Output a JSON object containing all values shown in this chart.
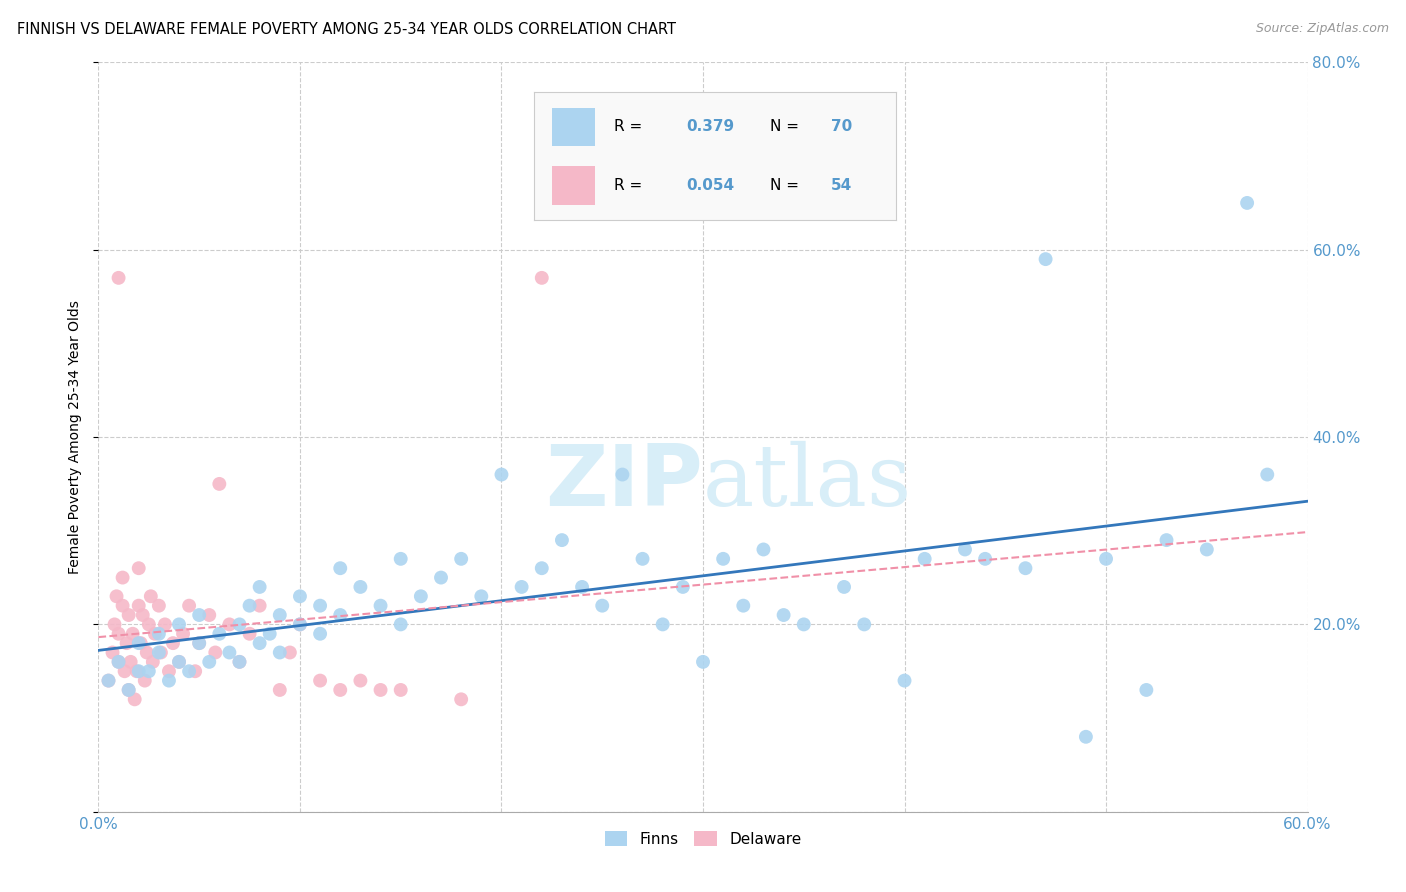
{
  "title": "FINNISH VS DELAWARE FEMALE POVERTY AMONG 25-34 YEAR OLDS CORRELATION CHART",
  "source": "Source: ZipAtlas.com",
  "ylabel": "Female Poverty Among 25-34 Year Olds",
  "xlim": [
    0.0,
    0.6
  ],
  "ylim": [
    0.0,
    0.8
  ],
  "background_color": "#ffffff",
  "grid_color": "#cccccc",
  "finns_color": "#acd4f0",
  "delaware_color": "#f5b8c8",
  "finns_line_color": "#3377bb",
  "delaware_line_color": "#f090a8",
  "watermark_color": "#d8eef8",
  "tick_color": "#5599cc",
  "finns_x": [
    0.005,
    0.01,
    0.015,
    0.02,
    0.02,
    0.025,
    0.03,
    0.03,
    0.035,
    0.04,
    0.04,
    0.045,
    0.05,
    0.05,
    0.055,
    0.06,
    0.065,
    0.07,
    0.07,
    0.075,
    0.08,
    0.08,
    0.085,
    0.09,
    0.09,
    0.1,
    0.1,
    0.11,
    0.11,
    0.12,
    0.12,
    0.13,
    0.14,
    0.15,
    0.15,
    0.16,
    0.17,
    0.18,
    0.19,
    0.2,
    0.21,
    0.22,
    0.23,
    0.24,
    0.25,
    0.26,
    0.27,
    0.28,
    0.29,
    0.3,
    0.31,
    0.32,
    0.33,
    0.34,
    0.35,
    0.37,
    0.38,
    0.4,
    0.41,
    0.43,
    0.44,
    0.46,
    0.47,
    0.49,
    0.5,
    0.52,
    0.53,
    0.55,
    0.57,
    0.58
  ],
  "finns_y": [
    0.14,
    0.16,
    0.13,
    0.15,
    0.18,
    0.15,
    0.17,
    0.19,
    0.14,
    0.16,
    0.2,
    0.15,
    0.18,
    0.21,
    0.16,
    0.19,
    0.17,
    0.2,
    0.16,
    0.22,
    0.18,
    0.24,
    0.19,
    0.21,
    0.17,
    0.2,
    0.23,
    0.22,
    0.19,
    0.26,
    0.21,
    0.24,
    0.22,
    0.2,
    0.27,
    0.23,
    0.25,
    0.27,
    0.23,
    0.36,
    0.24,
    0.26,
    0.29,
    0.24,
    0.22,
    0.36,
    0.27,
    0.2,
    0.24,
    0.16,
    0.27,
    0.22,
    0.28,
    0.21,
    0.2,
    0.24,
    0.2,
    0.14,
    0.27,
    0.28,
    0.27,
    0.26,
    0.59,
    0.08,
    0.27,
    0.13,
    0.29,
    0.28,
    0.65,
    0.36
  ],
  "delaware_x": [
    0.005,
    0.007,
    0.008,
    0.009,
    0.01,
    0.01,
    0.01,
    0.012,
    0.012,
    0.013,
    0.014,
    0.015,
    0.015,
    0.016,
    0.017,
    0.018,
    0.019,
    0.02,
    0.02,
    0.021,
    0.022,
    0.023,
    0.024,
    0.025,
    0.026,
    0.027,
    0.028,
    0.03,
    0.031,
    0.033,
    0.035,
    0.037,
    0.04,
    0.042,
    0.045,
    0.048,
    0.05,
    0.055,
    0.058,
    0.06,
    0.065,
    0.07,
    0.075,
    0.08,
    0.09,
    0.095,
    0.1,
    0.11,
    0.12,
    0.13,
    0.14,
    0.15,
    0.18,
    0.22
  ],
  "delaware_y": [
    0.14,
    0.17,
    0.2,
    0.23,
    0.16,
    0.19,
    0.57,
    0.22,
    0.25,
    0.15,
    0.18,
    0.21,
    0.13,
    0.16,
    0.19,
    0.12,
    0.15,
    0.22,
    0.26,
    0.18,
    0.21,
    0.14,
    0.17,
    0.2,
    0.23,
    0.16,
    0.19,
    0.22,
    0.17,
    0.2,
    0.15,
    0.18,
    0.16,
    0.19,
    0.22,
    0.15,
    0.18,
    0.21,
    0.17,
    0.35,
    0.2,
    0.16,
    0.19,
    0.22,
    0.13,
    0.17,
    0.2,
    0.14,
    0.13,
    0.14,
    0.13,
    0.13,
    0.12,
    0.57
  ]
}
